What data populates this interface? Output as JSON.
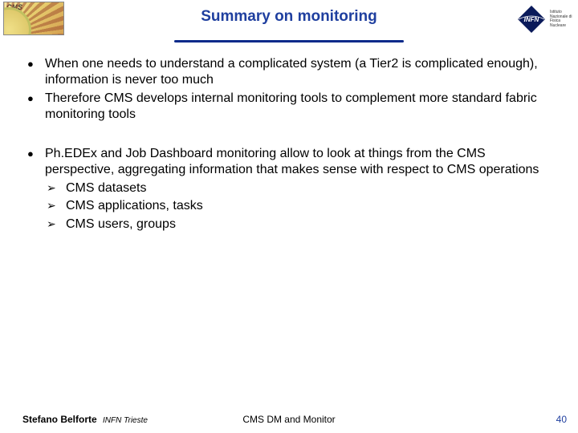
{
  "header": {
    "title": "Summary on monitoring",
    "title_color": "#1f3f9f",
    "title_fontsize": 19,
    "underline_color": "#0a2a8a",
    "underline_width": 286,
    "logo_left_alt": "CMS",
    "logo_right_alt": "INFN",
    "infn_sub": "Istituto Nazionale di Fisica Nucleare"
  },
  "body": {
    "fontsize": 16,
    "line_height": 1.28,
    "text_color": "#000000",
    "bullet_color": "#000000",
    "sub_bullet_color": "#000000",
    "group1": [
      "When one needs to understand a complicated system (a Tier2 is complicated enough), information is never too much",
      "Therefore CMS develops internal monitoring tools to complement more standard fabric monitoring tools"
    ],
    "group2": [
      {
        "text": "Ph.EDEx and Job Dashboard monitoring allow to look at things from the CMS perspective, aggregating information that makes sense with respect to CMS operations",
        "sub": [
          "CMS datasets",
          "CMS applications, tasks",
          "CMS users, groups"
        ]
      }
    ]
  },
  "footer": {
    "author": "Stefano Belforte",
    "affiliation": "INFN Trieste",
    "center": "CMS DM and Monitor",
    "page": "40",
    "fontsize": 12,
    "page_color": "#1f3f9f",
    "text_color": "#000000"
  }
}
